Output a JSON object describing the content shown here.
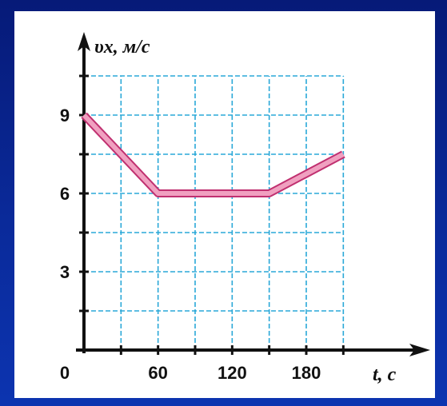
{
  "chart_data": {
    "type": "line",
    "xlabel": "t, с",
    "ylabel": "υx, м/с",
    "origin_label": "0",
    "x_ticks": [
      60,
      120,
      180
    ],
    "y_ticks": [
      3,
      6,
      9
    ],
    "x_grid_step": 30,
    "y_grid_step": 1.5,
    "xlim": [
      0,
      210
    ],
    "ylim": [
      0,
      11
    ],
    "grid": true,
    "series": [
      {
        "x": [
          0,
          60,
          150,
          210
        ],
        "y": [
          9,
          6,
          6,
          7.5
        ],
        "color": "#f0a0c0"
      }
    ],
    "colors": {
      "grid": "#2aa8d8",
      "axis": "#111111",
      "line_fill": "#f4a6c6",
      "line_outline": "#c03070"
    }
  }
}
